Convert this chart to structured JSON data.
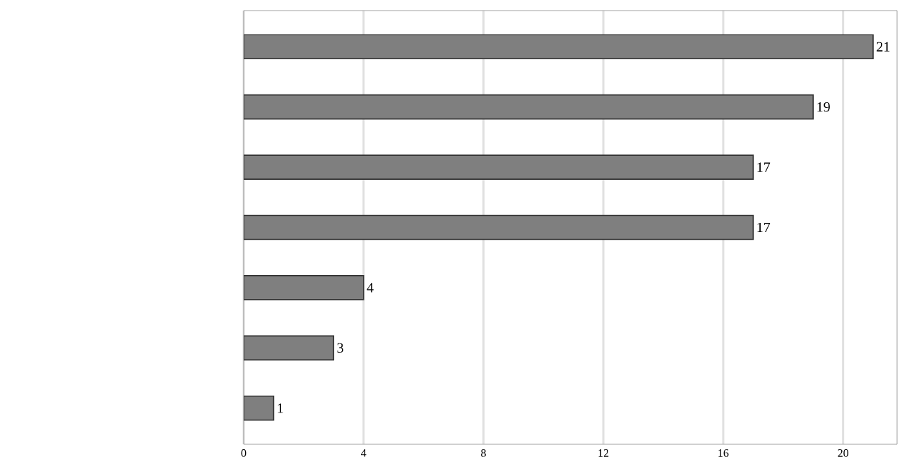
{
  "chart_data": {
    "type": "bar",
    "orientation": "horizontal",
    "categories": [
      null,
      null,
      null,
      null,
      null,
      null,
      null
    ],
    "values": [
      21,
      19,
      17,
      17,
      4,
      3,
      1
    ],
    "color": "#7f7f7f",
    "xlim": [
      0,
      21.8
    ],
    "xticks": [
      0,
      4,
      8,
      12,
      16,
      20
    ],
    "grid": "x",
    "data_labels": true
  }
}
